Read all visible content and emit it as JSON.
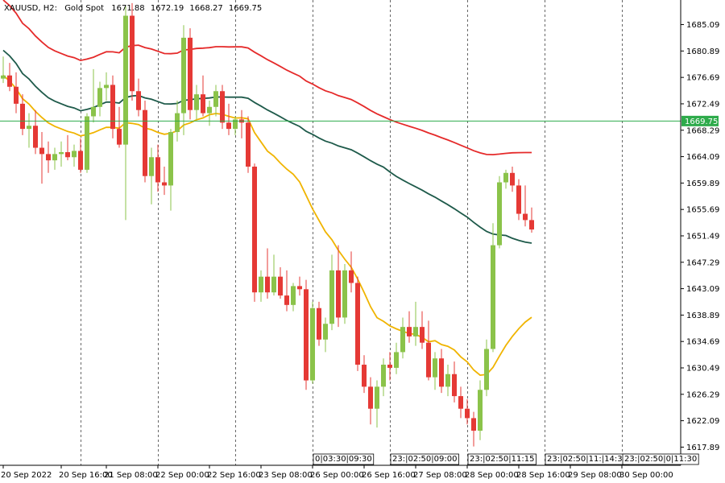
{
  "header": {
    "symbol_timeframe": "XAUUSD, H2:",
    "instrument": "Gold Spot",
    "open": "1671.88",
    "high": "1672.19",
    "low": "1668.27",
    "close": "1669.75"
  },
  "colors": {
    "bull": "#8bc34a",
    "bear": "#e53935",
    "ma_fast": "#f0b400",
    "ma_mid": "#1e5a4a",
    "ma_slow": "#e52a2a",
    "price_line": "#2eab4b",
    "grid": "#444444",
    "axis": "#000000"
  },
  "chart_data": {
    "type": "candlestick",
    "title": "",
    "xlabel": "",
    "ylabel": "",
    "ylim": [
      1615.0,
      1689.0
    ],
    "y_ticks": [
      1685.09,
      1680.89,
      1676.69,
      1672.49,
      1668.29,
      1664.09,
      1659.89,
      1655.69,
      1651.49,
      1647.29,
      1643.09,
      1638.89,
      1634.69,
      1630.49,
      1626.29,
      1622.09,
      1617.89
    ],
    "current_price": 1669.75,
    "current_price_label": "1669.75",
    "bar_count": 83,
    "x_labels": [
      {
        "bar": 0,
        "text": "20 Sep 2022"
      },
      {
        "bar": 9,
        "text": "20 Sep 16:00"
      },
      {
        "bar": 16,
        "text": "21 Sep 08:00"
      },
      {
        "bar": 24,
        "text": "22 Sep 00:00"
      },
      {
        "bar": 32,
        "text": "22 Sep 16:00"
      },
      {
        "bar": 40,
        "text": "23 Sep 08:00"
      },
      {
        "bar": 48,
        "text": "26 Sep 00:00"
      },
      {
        "bar": 56,
        "text": "26 Sep 16:00"
      },
      {
        "bar": 64,
        "text": "27 Sep 08:00"
      },
      {
        "bar": 72,
        "text": "28 Sep 00:00"
      },
      {
        "bar": 80,
        "text": "28 Sep 16:00"
      },
      {
        "bar": 88,
        "text": "29 Sep 08:00"
      },
      {
        "bar": 96,
        "text": "30 Sep 00:00"
      }
    ],
    "separator_labels": [
      {
        "bar": 48,
        "texts": [
          "0",
          "03:30",
          "09:30"
        ]
      },
      {
        "bar": 60,
        "texts": [
          "23:",
          "02:50",
          "09:00"
        ]
      },
      {
        "bar": 72,
        "texts": [
          "23:",
          "02:50",
          "11:15"
        ]
      },
      {
        "bar": 84,
        "texts": [
          "23:",
          "02:50",
          "11:",
          "14:30"
        ]
      },
      {
        "bar": 96,
        "texts": [
          "23:",
          "02:50",
          "0",
          "11:30"
        ]
      }
    ],
    "vertical_grid_bars": [
      12,
      24,
      36,
      48,
      60,
      72,
      84,
      96
    ],
    "candles": [
      {
        "o": 1676.5,
        "h": 1680.0,
        "l": 1675.8,
        "c": 1677.0
      },
      {
        "o": 1677.0,
        "h": 1679.0,
        "l": 1674.5,
        "c": 1675.2
      },
      {
        "o": 1675.2,
        "h": 1677.5,
        "l": 1671.0,
        "c": 1672.5
      },
      {
        "o": 1672.5,
        "h": 1674.0,
        "l": 1667.5,
        "c": 1668.5
      },
      {
        "o": 1668.5,
        "h": 1671.0,
        "l": 1665.5,
        "c": 1669.0
      },
      {
        "o": 1669.0,
        "h": 1671.5,
        "l": 1664.5,
        "c": 1665.5
      },
      {
        "o": 1665.5,
        "h": 1668.0,
        "l": 1659.8,
        "c": 1664.5
      },
      {
        "o": 1664.5,
        "h": 1666.5,
        "l": 1661.5,
        "c": 1663.5
      },
      {
        "o": 1663.5,
        "h": 1665.5,
        "l": 1662.0,
        "c": 1664.5
      },
      {
        "o": 1664.5,
        "h": 1666.5,
        "l": 1662.5,
        "c": 1664.8
      },
      {
        "o": 1664.8,
        "h": 1667.5,
        "l": 1663.5,
        "c": 1664.0
      },
      {
        "o": 1664.0,
        "h": 1666.0,
        "l": 1662.5,
        "c": 1665.0
      },
      {
        "o": 1665.0,
        "h": 1667.0,
        "l": 1661.5,
        "c": 1662.0
      },
      {
        "o": 1662.0,
        "h": 1671.0,
        "l": 1661.5,
        "c": 1670.5
      },
      {
        "o": 1670.5,
        "h": 1678.0,
        "l": 1669.5,
        "c": 1672.0
      },
      {
        "o": 1672.0,
        "h": 1676.0,
        "l": 1670.5,
        "c": 1675.0
      },
      {
        "o": 1675.0,
        "h": 1677.5,
        "l": 1673.0,
        "c": 1675.5
      },
      {
        "o": 1675.5,
        "h": 1677.0,
        "l": 1667.0,
        "c": 1668.5
      },
      {
        "o": 1668.5,
        "h": 1672.0,
        "l": 1665.5,
        "c": 1666.0
      },
      {
        "o": 1666.0,
        "h": 1688.0,
        "l": 1654.0,
        "c": 1686.5
      },
      {
        "o": 1686.5,
        "h": 1688.5,
        "l": 1673.0,
        "c": 1674.5
      },
      {
        "o": 1674.5,
        "h": 1676.5,
        "l": 1670.5,
        "c": 1671.5
      },
      {
        "o": 1671.5,
        "h": 1673.0,
        "l": 1660.0,
        "c": 1661.0
      },
      {
        "o": 1661.0,
        "h": 1665.5,
        "l": 1656.5,
        "c": 1664.0
      },
      {
        "o": 1664.0,
        "h": 1666.0,
        "l": 1658.5,
        "c": 1660.0
      },
      {
        "o": 1660.0,
        "h": 1662.5,
        "l": 1658.0,
        "c": 1659.5
      },
      {
        "o": 1659.5,
        "h": 1668.5,
        "l": 1655.5,
        "c": 1668.0
      },
      {
        "o": 1668.0,
        "h": 1673.0,
        "l": 1666.5,
        "c": 1671.0
      },
      {
        "o": 1671.0,
        "h": 1685.0,
        "l": 1667.5,
        "c": 1683.0
      },
      {
        "o": 1683.0,
        "h": 1684.5,
        "l": 1670.0,
        "c": 1671.5
      },
      {
        "o": 1671.5,
        "h": 1675.5,
        "l": 1670.0,
        "c": 1674.0
      },
      {
        "o": 1674.0,
        "h": 1677.0,
        "l": 1670.5,
        "c": 1671.0
      },
      {
        "o": 1671.0,
        "h": 1673.0,
        "l": 1669.0,
        "c": 1672.0
      },
      {
        "o": 1672.0,
        "h": 1675.5,
        "l": 1670.5,
        "c": 1674.5
      },
      {
        "o": 1674.5,
        "h": 1675.5,
        "l": 1668.5,
        "c": 1669.5
      },
      {
        "o": 1669.5,
        "h": 1672.5,
        "l": 1667.5,
        "c": 1668.5
      },
      {
        "o": 1668.5,
        "h": 1670.5,
        "l": 1667.5,
        "c": 1670.0
      },
      {
        "o": 1670.0,
        "h": 1671.5,
        "l": 1667.0,
        "c": 1669.5
      },
      {
        "o": 1669.5,
        "h": 1670.5,
        "l": 1661.5,
        "c": 1662.5
      },
      {
        "o": 1662.5,
        "h": 1663.0,
        "l": 1641.0,
        "c": 1642.5
      },
      {
        "o": 1642.5,
        "h": 1646.0,
        "l": 1641.0,
        "c": 1645.0
      },
      {
        "o": 1645.0,
        "h": 1649.5,
        "l": 1641.5,
        "c": 1642.5
      },
      {
        "o": 1642.5,
        "h": 1648.5,
        "l": 1642.0,
        "c": 1645.0
      },
      {
        "o": 1645.0,
        "h": 1646.5,
        "l": 1641.5,
        "c": 1642.0
      },
      {
        "o": 1642.0,
        "h": 1646.0,
        "l": 1639.5,
        "c": 1640.5
      },
      {
        "o": 1640.5,
        "h": 1644.0,
        "l": 1639.5,
        "c": 1643.5
      },
      {
        "o": 1643.5,
        "h": 1645.0,
        "l": 1642.0,
        "c": 1643.0
      },
      {
        "o": 1643.0,
        "h": 1644.5,
        "l": 1627.0,
        "c": 1628.5
      },
      {
        "o": 1628.5,
        "h": 1641.0,
        "l": 1628.0,
        "c": 1640.0
      },
      {
        "o": 1640.0,
        "h": 1641.0,
        "l": 1634.0,
        "c": 1635.0
      },
      {
        "o": 1635.0,
        "h": 1638.5,
        "l": 1633.0,
        "c": 1637.5
      },
      {
        "o": 1637.5,
        "h": 1648.5,
        "l": 1636.5,
        "c": 1646.0
      },
      {
        "o": 1646.0,
        "h": 1650.0,
        "l": 1637.0,
        "c": 1638.5
      },
      {
        "o": 1638.5,
        "h": 1647.0,
        "l": 1637.5,
        "c": 1646.0
      },
      {
        "o": 1646.0,
        "h": 1649.0,
        "l": 1642.5,
        "c": 1644.0
      },
      {
        "o": 1644.0,
        "h": 1645.0,
        "l": 1630.0,
        "c": 1631.0
      },
      {
        "o": 1631.0,
        "h": 1632.5,
        "l": 1626.5,
        "c": 1627.5
      },
      {
        "o": 1627.5,
        "h": 1629.0,
        "l": 1621.5,
        "c": 1624.0
      },
      {
        "o": 1624.0,
        "h": 1628.5,
        "l": 1621.0,
        "c": 1627.5
      },
      {
        "o": 1627.5,
        "h": 1632.0,
        "l": 1626.0,
        "c": 1631.0
      },
      {
        "o": 1631.0,
        "h": 1633.0,
        "l": 1628.5,
        "c": 1630.5
      },
      {
        "o": 1630.5,
        "h": 1634.5,
        "l": 1629.5,
        "c": 1633.0
      },
      {
        "o": 1633.0,
        "h": 1638.5,
        "l": 1632.0,
        "c": 1637.0
      },
      {
        "o": 1637.0,
        "h": 1639.5,
        "l": 1634.5,
        "c": 1635.5
      },
      {
        "o": 1635.5,
        "h": 1641.0,
        "l": 1634.0,
        "c": 1637.0
      },
      {
        "o": 1637.0,
        "h": 1639.5,
        "l": 1633.5,
        "c": 1634.5
      },
      {
        "o": 1634.5,
        "h": 1638.0,
        "l": 1628.5,
        "c": 1629.0
      },
      {
        "o": 1629.0,
        "h": 1633.0,
        "l": 1627.0,
        "c": 1632.0
      },
      {
        "o": 1632.0,
        "h": 1633.5,
        "l": 1626.5,
        "c": 1627.5
      },
      {
        "o": 1627.5,
        "h": 1631.0,
        "l": 1626.0,
        "c": 1629.5
      },
      {
        "o": 1629.5,
        "h": 1631.5,
        "l": 1625.0,
        "c": 1626.0
      },
      {
        "o": 1626.0,
        "h": 1627.5,
        "l": 1622.5,
        "c": 1624.0
      },
      {
        "o": 1624.0,
        "h": 1625.5,
        "l": 1621.5,
        "c": 1622.5
      },
      {
        "o": 1622.5,
        "h": 1623.5,
        "l": 1618.0,
        "c": 1620.5
      },
      {
        "o": 1620.5,
        "h": 1628.5,
        "l": 1619.0,
        "c": 1627.0
      },
      {
        "o": 1627.0,
        "h": 1635.0,
        "l": 1626.0,
        "c": 1633.5
      },
      {
        "o": 1633.5,
        "h": 1653.5,
        "l": 1633.0,
        "c": 1650.0
      },
      {
        "o": 1650.0,
        "h": 1661.0,
        "l": 1649.5,
        "c": 1660.0
      },
      {
        "o": 1660.0,
        "h": 1662.0,
        "l": 1659.0,
        "c": 1661.5
      },
      {
        "o": 1661.5,
        "h": 1662.5,
        "l": 1658.5,
        "c": 1659.5
      },
      {
        "o": 1659.5,
        "h": 1660.5,
        "l": 1654.0,
        "c": 1655.0
      },
      {
        "o": 1655.0,
        "h": 1659.5,
        "l": 1653.0,
        "c": 1654.0
      },
      {
        "o": 1654.0,
        "h": 1656.0,
        "l": 1652.0,
        "c": 1652.5
      }
    ],
    "ma_fast": [],
    "ma_mid": [],
    "ma_slow": []
  }
}
